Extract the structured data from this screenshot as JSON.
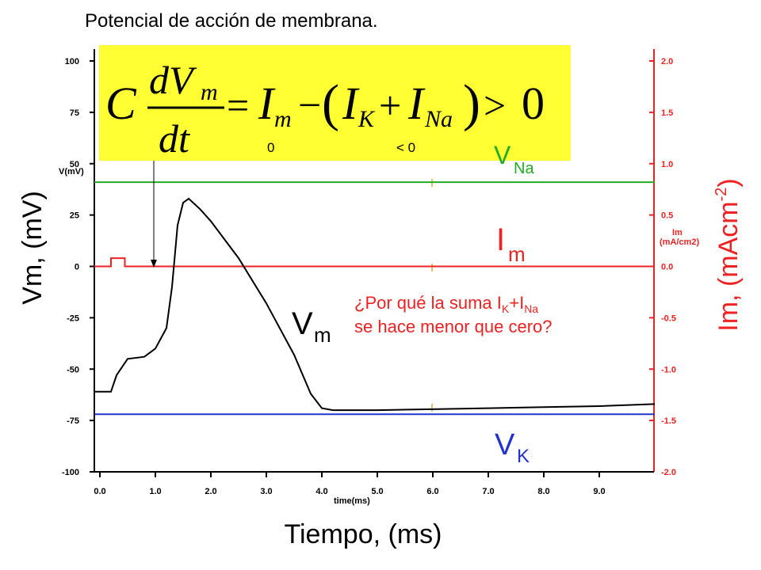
{
  "slide": {
    "title": "Potencial de acción de membrana."
  },
  "equation": {
    "C": "C",
    "dVm": "dV",
    "m": "m",
    "dt": "dt",
    "eq": "=",
    "Im": "I",
    "minus": "−",
    "open": "(",
    "IK": "I",
    "K": "K",
    "plus": "+",
    "INa": "I",
    "Na": "Na",
    "close": ")",
    "gt": ">",
    "zero": "0",
    "note_zero": "0",
    "note_lt": "< 0",
    "box_color": "#ffff33"
  },
  "labels": {
    "vna_main": "V",
    "vna_sub": "Na",
    "im_main": "I",
    "im_sub": "m",
    "vm_main": "V",
    "vm_sub": "m",
    "vk_main": "V",
    "vk_sub": "K",
    "question_l1_a": "¿Por qué la suma I",
    "question_l1_k": "K",
    "question_l1_b": "+I",
    "question_l1_na": "Na",
    "question_l2": "se hace menor que cero?",
    "y_left_big": "Vm, (mV)",
    "y_right_big_a": "Im, (mAcm",
    "y_right_big_sup": "-2",
    "y_right_big_b": ")",
    "x_big": "Tiempo, (ms)",
    "y_left_small": "V(mV)",
    "y_right_small_1": "Im",
    "y_right_small_2": "(mA/cm2)",
    "x_small": "time(ms)"
  },
  "colors": {
    "vm": "#000000",
    "vna": "#22aa22",
    "im": "#ee2222",
    "vk": "#2233cc",
    "right_axis": "#ee2222",
    "question": "#ee2222",
    "vk_label": "#2233cc"
  },
  "chart_data": {
    "type": "line",
    "title": "Potencial de acción de membrana.",
    "xlabel": "Tiempo, (ms)",
    "ylabel": "Vm, (mV)",
    "y2label": "Im, (mAcm-2)",
    "xlim": [
      0,
      10
    ],
    "ylim": [
      -100,
      100
    ],
    "y2lim": [
      -2.0,
      2.0
    ],
    "x_ticks": [
      "0.0",
      "1.0",
      "2.0",
      "3.0",
      "4.0",
      "5.0",
      "6.0",
      "7.0",
      "8.0",
      "9.0"
    ],
    "y_ticks": [
      "100",
      "75",
      "50",
      "25",
      "0",
      "-25",
      "-50",
      "-75",
      "-100"
    ],
    "y2_ticks": [
      "2.0",
      "1.5",
      "1.0",
      "0.5",
      "0.0",
      "-0.5",
      "-1.0",
      "-1.5",
      "-2.0"
    ],
    "grid": false,
    "series": [
      {
        "name": "Vm",
        "axis": "left",
        "x": [
          -0.1,
          0.2,
          0.3,
          0.5,
          0.8,
          1.0,
          1.2,
          1.3,
          1.4,
          1.5,
          1.6,
          1.8,
          2.0,
          2.5,
          3.0,
          3.5,
          3.8,
          4.0,
          4.2,
          5.0,
          6.0,
          7.0,
          8.0,
          9.0,
          10.0
        ],
        "y": [
          -61,
          -61,
          -53,
          -45,
          -44,
          -40,
          -30,
          -10,
          20,
          31,
          33,
          28,
          22,
          4,
          -18,
          -43,
          -62,
          -69,
          -70,
          -70,
          -69.5,
          -69,
          -68.5,
          -68,
          -67
        ]
      },
      {
        "name": "VNa",
        "axis": "left",
        "x": [
          -0.1,
          10.0
        ],
        "y": [
          41,
          41
        ]
      },
      {
        "name": "VK",
        "axis": "left",
        "x": [
          -0.1,
          10.0
        ],
        "y": [
          -72,
          -72
        ]
      },
      {
        "name": "Im",
        "axis": "right",
        "x": [
          -0.1,
          0.2,
          0.2,
          0.45,
          0.45,
          10.0
        ],
        "y": [
          0.0,
          0.0,
          0.08,
          0.08,
          0.0,
          0.0
        ]
      }
    ]
  }
}
